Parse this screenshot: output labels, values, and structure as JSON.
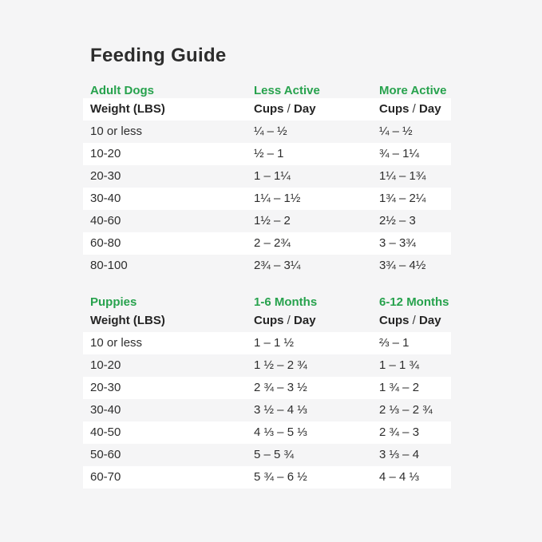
{
  "page": {
    "title": "Feeding Guide",
    "background_color": "#f5f5f6",
    "row_stripe_color": "#ffffff",
    "accent_green": "#27a24d",
    "text_color": "#2e2e2e"
  },
  "labels": {
    "weight": "Weight (LBS)",
    "cups": "Cups",
    "slash": "/",
    "day": "Day"
  },
  "chart_data": [
    {
      "type": "table",
      "section_title": "Adult Dogs",
      "col_headers": [
        "Less Active",
        "More Active"
      ],
      "sub_headers": [
        "Weight (LBS)",
        "Cups / Day",
        "Cups / Day"
      ],
      "rows": [
        [
          "10 or less",
          "¼ – ½",
          "¼ – ½"
        ],
        [
          "10-20",
          "½ – 1",
          "¾ – 1¼"
        ],
        [
          "20-30",
          "1 – 1¼",
          "1¼ – 1¾"
        ],
        [
          "30-40",
          "1¼ – 1½",
          "1¾ – 2¼"
        ],
        [
          "40-60",
          "1½ – 2",
          "2½ – 3"
        ],
        [
          "60-80",
          "2 – 2¾",
          "3 – 3¾"
        ],
        [
          "80-100",
          "2¾ – 3¼",
          "3¾ – 4½"
        ]
      ]
    },
    {
      "type": "table",
      "section_title": "Puppies",
      "col_headers": [
        "1-6 Months",
        "6-12 Months"
      ],
      "sub_headers": [
        "Weight (LBS)",
        "Cups / Day",
        "Cups / Day"
      ],
      "rows": [
        [
          "10 or less",
          "1 – 1 ½",
          "⅔ – 1"
        ],
        [
          "10-20",
          "1 ½ – 2 ¾",
          "1 – 1 ¾"
        ],
        [
          "20-30",
          "2 ¾ – 3 ½",
          "1 ¾ – 2"
        ],
        [
          "30-40",
          "3 ½ – 4 ⅓",
          "2 ⅓ – 2 ¾"
        ],
        [
          "40-50",
          "4 ⅓ – 5 ⅓",
          "2 ¾ – 3"
        ],
        [
          "50-60",
          "5 – 5 ¾",
          "3 ⅓ – 4"
        ],
        [
          "60-70",
          "5 ¾ – 6 ½",
          "4 – 4 ⅓"
        ]
      ]
    }
  ]
}
